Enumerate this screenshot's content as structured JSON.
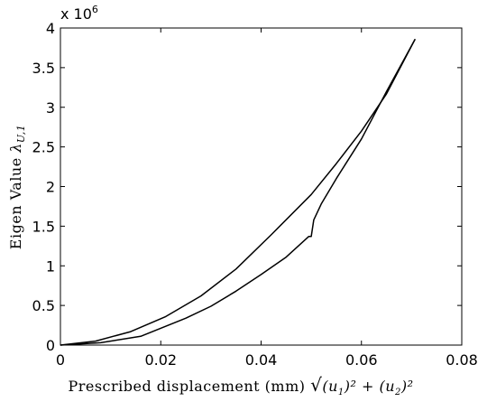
{
  "chart_data": {
    "type": "line",
    "title": "",
    "xlabel": "Prescribed displacement (mm)",
    "xlabel_math": {
      "radical": "√",
      "expr": "(u",
      "sub1": "1",
      "mid": ")² + (u",
      "sub2": "2",
      "end": ")²"
    },
    "ylabel": "Eigen Value",
    "ylabel_math": {
      "symbol": "λ",
      "subscript": "U,1"
    },
    "y_exponent_label": {
      "base": "x 10",
      "power": "6"
    },
    "xlim": [
      0,
      0.08
    ],
    "ylim": [
      0,
      4
    ],
    "y_scale_factor": 1000000,
    "grid": false,
    "xticks": [
      "0",
      "0.02",
      "0.04",
      "0.06",
      "0.08"
    ],
    "yticks": [
      "0",
      "0.5",
      "1",
      "1.5",
      "2",
      "2.5",
      "3",
      "3.5",
      "4"
    ],
    "series": [
      {
        "color": "#000000",
        "x": [
          0,
          0.007,
          0.014,
          0.021,
          0.028,
          0.035,
          0.042,
          0.05,
          0.055,
          0.06,
          0.065,
          0.0707
        ],
        "y": [
          0,
          0.05,
          0.17,
          0.36,
          0.62,
          0.96,
          1.39,
          1.9,
          2.29,
          2.7,
          3.17,
          3.86
        ]
      },
      {
        "color": "#000000",
        "x": [
          0,
          0.008,
          0.016,
          0.025,
          0.03,
          0.035,
          0.04,
          0.045,
          0.0495,
          0.05,
          0.0505,
          0.052,
          0.055,
          0.06,
          0.065,
          0.0707
        ],
        "y": [
          0,
          0.03,
          0.11,
          0.34,
          0.49,
          0.68,
          0.89,
          1.11,
          1.37,
          1.37,
          1.58,
          1.78,
          2.1,
          2.6,
          3.2,
          3.86
        ]
      }
    ]
  }
}
